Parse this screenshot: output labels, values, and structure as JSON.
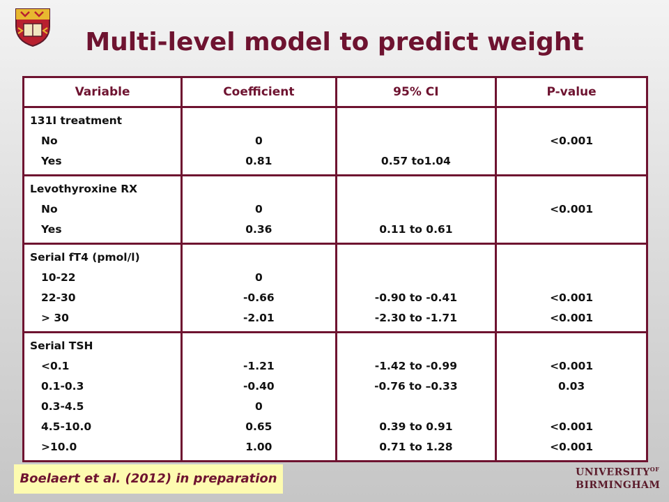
{
  "title": "Multi-level model to predict weight",
  "table": {
    "headers": [
      "Variable",
      "Coefficient",
      "95% CI",
      "P-value"
    ],
    "groups": [
      {
        "variable": [
          "131I treatment",
          "No",
          "Yes"
        ],
        "coefficient": [
          "",
          "0",
          "0.81"
        ],
        "ci": [
          "",
          "",
          "0.57 to1.04"
        ],
        "p": [
          "",
          "<0.001",
          ""
        ]
      },
      {
        "variable": [
          "Levothyroxine RX",
          "No",
          "Yes"
        ],
        "coefficient": [
          "",
          "0",
          "0.36"
        ],
        "ci": [
          "",
          "",
          "0.11 to 0.61"
        ],
        "p": [
          "",
          "<0.001",
          ""
        ]
      },
      {
        "variable": [
          "Serial fT4 (pmol/l)",
          "10-22",
          "22-30",
          "> 30"
        ],
        "coefficient": [
          "",
          "0",
          "-0.66",
          "-2.01"
        ],
        "ci": [
          "",
          "",
          "-0.90 to -0.41",
          "-2.30 to -1.71"
        ],
        "p": [
          "",
          "",
          "<0.001",
          "<0.001"
        ]
      },
      {
        "variable": [
          "Serial TSH",
          "<0.1",
          "0.1-0.3",
          "0.3-4.5",
          "4.5-10.0",
          ">10.0"
        ],
        "coefficient": [
          "",
          "-1.21",
          "-0.40",
          "0",
          "0.65",
          "1.00"
        ],
        "ci": [
          "",
          "-1.42 to -0.99",
          "-0.76 to –0.33",
          "",
          "0.39 to 0.91",
          "0.71 to 1.28"
        ],
        "p": [
          "",
          "<0.001",
          "0.03",
          "",
          "<0.001",
          "<0.001"
        ]
      }
    ]
  },
  "citation": "Boelaert et al. (2012) in preparation",
  "logo": {
    "line1": "UNIVERSITY",
    "line1_sup": "OF",
    "line2": "BIRMINGHAM"
  },
  "colors": {
    "accent": "#6e1330",
    "citation_bg": "#fdfbb0"
  },
  "icons": {
    "crest": "university-crest-icon"
  }
}
